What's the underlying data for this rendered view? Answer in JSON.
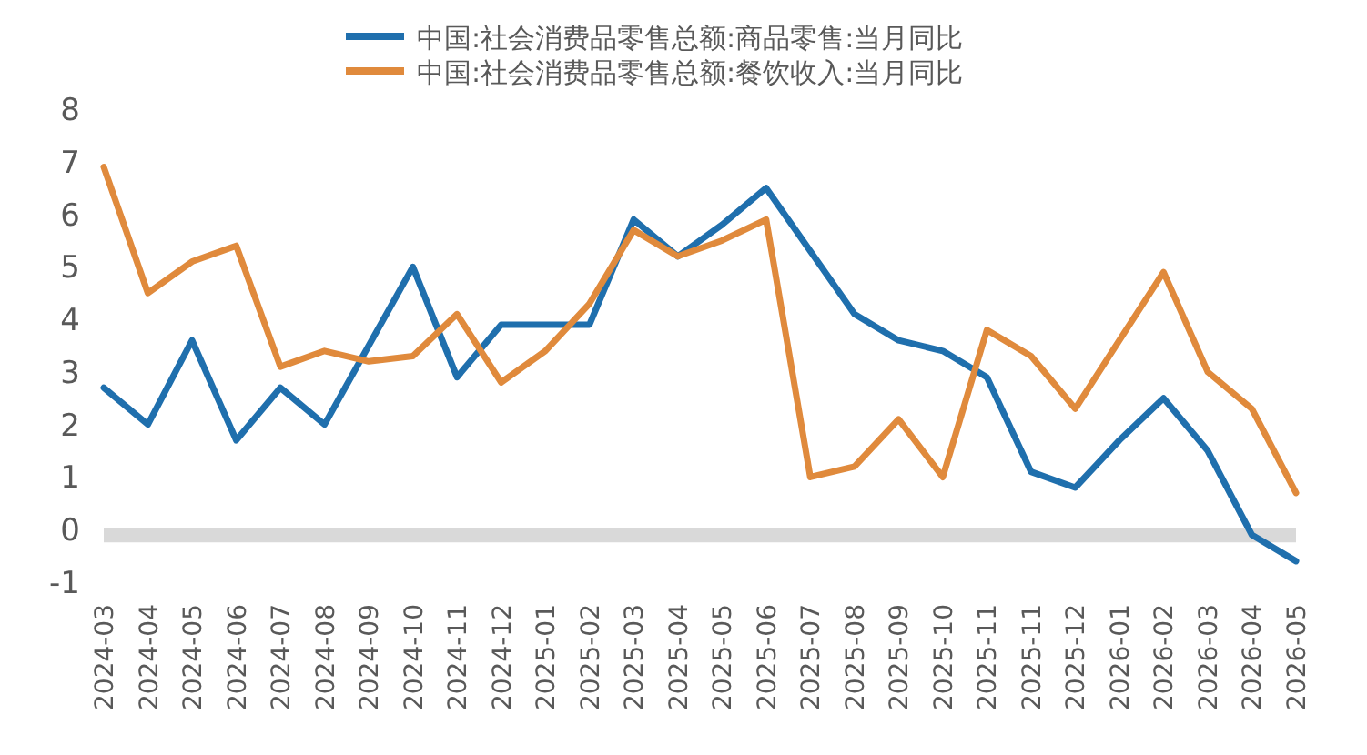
{
  "chart_data": {
    "type": "line",
    "categories": [
      "2024-03",
      "2024-04",
      "2024-05",
      "2024-06",
      "2024-07",
      "2024-08",
      "2024-09",
      "2024-10",
      "2024-11",
      "2024-12",
      "2025-01",
      "2025-02",
      "2025-03",
      "2025-04",
      "2025-05",
      "2025-06",
      "2025-07",
      "2025-08",
      "2025-09",
      "2025-10",
      "2025-11",
      "2025-11",
      "2025-12",
      "2026-01",
      "2026-02",
      "2026-03",
      "2026-04",
      "2026-05"
    ],
    "series": [
      {
        "name": "中国:社会消费品零售总额:商品零售:当月同比",
        "color": "#1f6fad",
        "values": [
          2.7,
          2.0,
          3.6,
          1.7,
          2.7,
          2.0,
          3.5,
          5.0,
          2.9,
          3.9,
          3.9,
          3.9,
          5.9,
          5.2,
          5.8,
          6.5,
          5.3,
          4.1,
          3.6,
          3.4,
          2.9,
          1.1,
          0.8,
          1.7,
          2.5,
          1.5,
          -0.1,
          -0.6
        ]
      },
      {
        "name": "中国:社会消费品零售总额:餐饮收入:当月同比",
        "color": "#e08a3c",
        "values": [
          6.9,
          4.5,
          5.1,
          5.4,
          3.1,
          3.4,
          3.2,
          3.3,
          4.1,
          2.8,
          3.4,
          4.3,
          5.7,
          5.2,
          5.5,
          5.9,
          1.0,
          1.2,
          2.1,
          1.0,
          3.8,
          3.3,
          2.3,
          3.6,
          4.9,
          3.0,
          2.3,
          0.7
        ]
      }
    ],
    "ylim": [
      -1,
      8
    ],
    "yticks": [
      -1,
      0,
      1,
      2,
      3,
      4,
      5,
      6,
      7,
      8
    ],
    "ref_lines": [
      {
        "axis": "y",
        "value": 0,
        "color": "#d9d9d9"
      }
    ],
    "legend": "top",
    "grid": false,
    "marker": "none",
    "line_style": "solid"
  }
}
